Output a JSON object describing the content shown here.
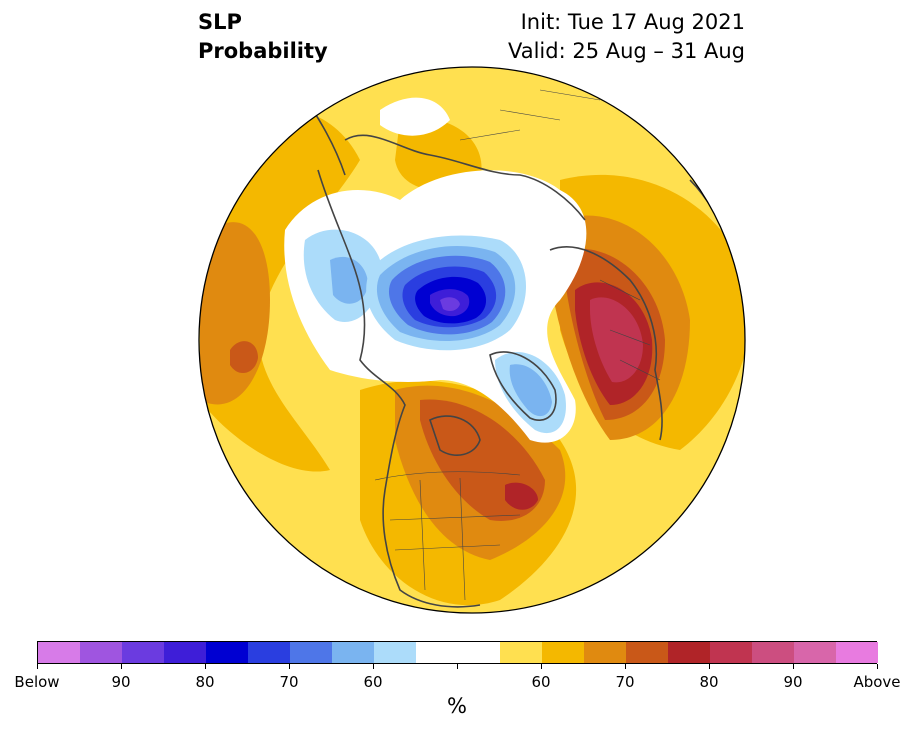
{
  "title": {
    "left_line1": "SLP",
    "left_line2": "Probability",
    "right_line1": "Init: Tue 17 Aug 2021",
    "right_line2": "Valid: 25 Aug – 31 Aug"
  },
  "colorbar": {
    "unit": "%",
    "colors": [
      "#d77be8",
      "#9f55e0",
      "#6b3be0",
      "#3e1ed8",
      "#0000d2",
      "#2a3ee0",
      "#4e76e8",
      "#7ab4f0",
      "#acdcfa",
      "#ffffff",
      "#ffffff",
      "#ffe050",
      "#f4b800",
      "#e08a10",
      "#c95818",
      "#b02428",
      "#c03450",
      "#cc4e80",
      "#d866aa",
      "#e87be0"
    ],
    "labels": [
      "Below",
      "90",
      "80",
      "70",
      "60",
      "60",
      "70",
      "80",
      "90",
      "Above"
    ]
  },
  "map": {
    "projection": "north-polar-stereographic",
    "colors": {
      "land_lines": "#444444",
      "yellow": "#ffe050",
      "gold": "#f4b800",
      "orange": "#e08a10",
      "dark_orange": "#c95818",
      "red": "#b02428",
      "rose": "#c03450",
      "light_blue": "#acdcfa",
      "sky_blue": "#7ab4f0",
      "blue": "#4e76e8",
      "royal_blue": "#2a3ee0",
      "deep_blue": "#0000d2",
      "indigo": "#3e1ed8",
      "purple": "#6b3be0"
    }
  }
}
